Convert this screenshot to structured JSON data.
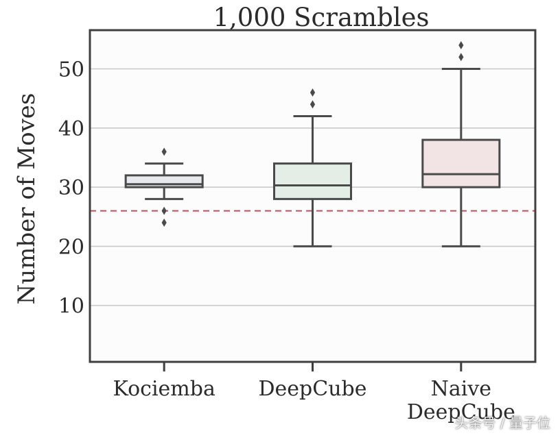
{
  "chart_data": {
    "type": "box",
    "title": "1,000 Scrambles",
    "xlabel": "",
    "ylabel": "Number of Moves",
    "ylim": [
      0,
      56
    ],
    "yticks": [
      10,
      20,
      30,
      40,
      50
    ],
    "grid": true,
    "reference_line": {
      "value": 26,
      "style": "dashed",
      "color": "#c0505b"
    },
    "categories": [
      "Kociemba",
      "DeepCube",
      "Naive\nDeepCube"
    ],
    "series": [
      {
        "name": "Kociemba",
        "whisker_low": 28,
        "q1": 30,
        "median": 30.5,
        "q3": 32,
        "whisker_high": 34,
        "outliers": [
          24,
          26,
          36
        ],
        "fill": "#e8e9ef"
      },
      {
        "name": "DeepCube",
        "whisker_low": 20,
        "q1": 28,
        "median": 30.3,
        "q3": 34,
        "whisker_high": 42,
        "outliers": [
          44,
          46
        ],
        "fill": "#e4eee6"
      },
      {
        "name": "Naive DeepCube",
        "whisker_low": 20,
        "q1": 30,
        "median": 32.2,
        "q3": 38,
        "whisker_high": 50,
        "outliers": [
          52,
          54
        ],
        "fill": "#f2e4e4"
      }
    ]
  },
  "watermark": "头条号 / 量子位"
}
